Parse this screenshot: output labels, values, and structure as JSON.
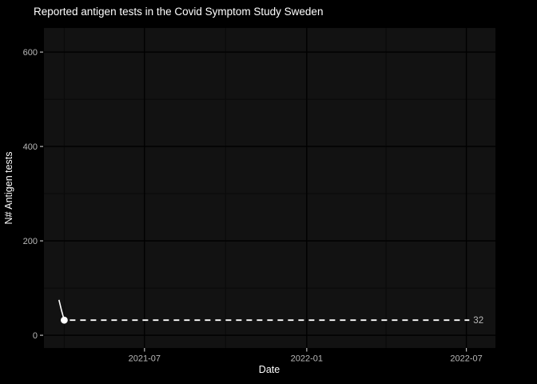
{
  "chart_data": {
    "type": "line",
    "title": "Reported antigen tests in the Covid Symptom Study Sweden",
    "xlabel": "Date",
    "ylabel": "N# Antigen tests",
    "legend": "none",
    "grid": true,
    "x_domain": [
      "2021-03-09",
      "2022-08-03"
    ],
    "y_domain": [
      -27,
      651
    ],
    "ylim_data": [
      0,
      600
    ],
    "x_major_ticks": [
      {
        "date": "2021-07-01",
        "label": "2021-07"
      },
      {
        "date": "2022-01-01",
        "label": "2022-01"
      },
      {
        "date": "2022-07-01",
        "label": "2022-07"
      }
    ],
    "x_minor_ticks": [
      "2021-04-01",
      "2021-10-01",
      "2022-04-01"
    ],
    "y_major_ticks": [
      {
        "value": 0,
        "label": "0"
      },
      {
        "value": 200,
        "label": "200"
      },
      {
        "value": 400,
        "label": "400"
      },
      {
        "value": 600,
        "label": "600"
      }
    ],
    "y_minor_ticks": [
      100,
      300,
      500
    ],
    "series": [
      {
        "name": "antigen-tests",
        "points": [
          {
            "date": "2021-03-26",
            "value": 75
          },
          {
            "date": "2021-03-29",
            "value": 52
          },
          {
            "date": "2021-04-01",
            "value": 32
          }
        ]
      }
    ],
    "annotation": {
      "value": 32,
      "label": "32",
      "label_date": "2022-07-08"
    }
  },
  "colors": {
    "background": "#000000",
    "panel": "#121212",
    "grid_major": "#000000",
    "grid_minor": "#0a0a0a",
    "title": "#ffffff",
    "axis_title": "#ffffff",
    "tick_label": "#b8b8b8",
    "tick_mark": "#bbbbbb",
    "series": "#ffffff",
    "point": "#ffffff",
    "annotation_line": "#ffffff",
    "annotation_text": "#b8b8b8"
  }
}
